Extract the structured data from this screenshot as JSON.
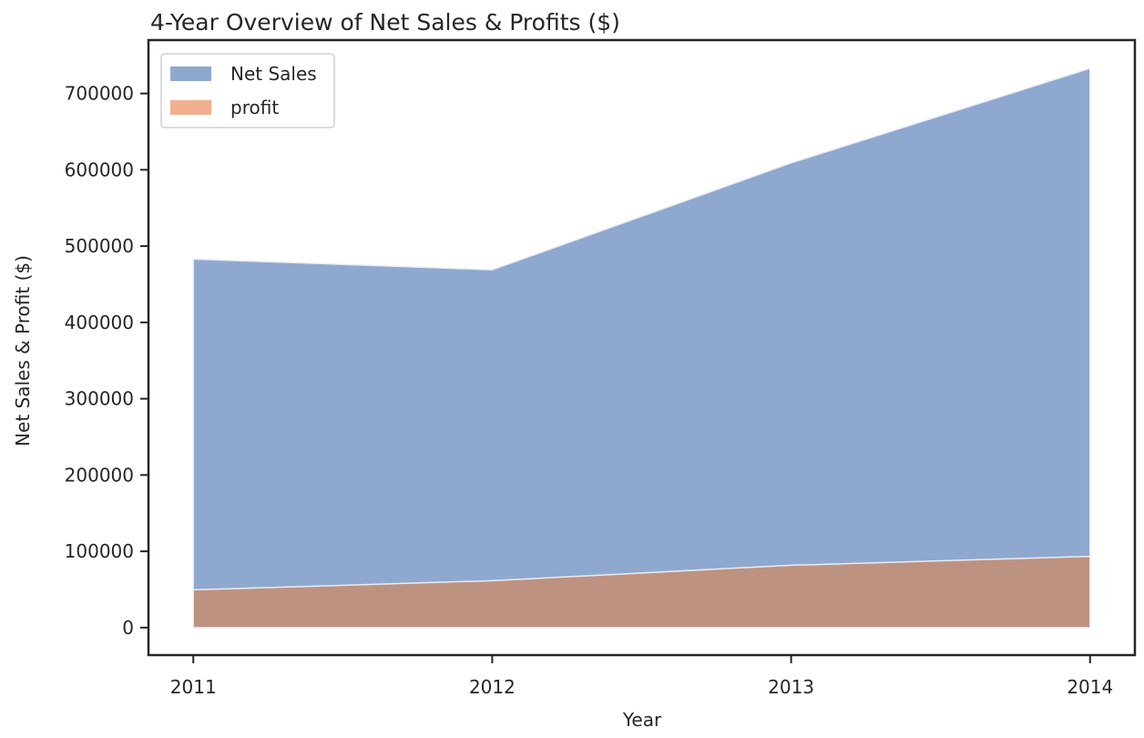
{
  "chart_data": {
    "type": "area",
    "title": "4-Year Overview of Net Sales & Profits ($)",
    "xlabel": "Year",
    "ylabel": "Net Sales & Profit ($)",
    "x": [
      2011,
      2012,
      2013,
      2014
    ],
    "x_tick_labels": [
      "2011",
      "2012",
      "2013",
      "2014"
    ],
    "y_ticks": [
      0,
      100000,
      200000,
      300000,
      400000,
      500000,
      600000,
      700000
    ],
    "y_tick_labels": [
      "0",
      "100000",
      "200000",
      "300000",
      "400000",
      "500000",
      "600000",
      "700000"
    ],
    "xlim": [
      2010.85,
      2014.15
    ],
    "ylim": [
      -36000,
      770000
    ],
    "stacked": false,
    "grid": false,
    "legend_position": "top-left",
    "series": [
      {
        "name": "Net Sales",
        "values": [
          483000,
          469000,
          609000,
          733000
        ],
        "color": "#8fa8cf"
      },
      {
        "name": "profit",
        "values": [
          49500,
          61500,
          81700,
          93400
        ],
        "color": "#f0b08f"
      }
    ],
    "overlap_color": "#be9280",
    "legend": {
      "items": [
        {
          "label": "Net Sales",
          "color": "#8fa8cf"
        },
        {
          "label": "profit",
          "color": "#f0b08f"
        }
      ]
    }
  }
}
